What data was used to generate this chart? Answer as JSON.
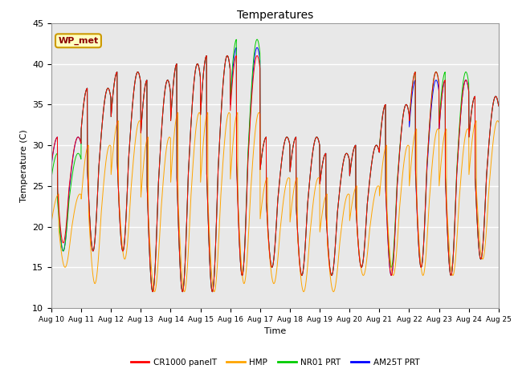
{
  "title": "Temperatures",
  "xlabel": "Time",
  "ylabel": "Temperature (C)",
  "ylim": [
    10,
    45
  ],
  "annotation": "WP_met",
  "legend_labels": [
    "CR1000 panelT",
    "HMP",
    "NR01 PRT",
    "AM25T PRT"
  ],
  "legend_colors": [
    "#ff0000",
    "#ffa500",
    "#00cc00",
    "#0000ff"
  ],
  "x_tick_labels": [
    "Aug 10",
    "Aug 11",
    "Aug 12",
    "Aug 13",
    "Aug 14",
    "Aug 15",
    "Aug 16",
    "Aug 17",
    "Aug 18",
    "Aug 19",
    "Aug 20",
    "Aug 21",
    "Aug 22",
    "Aug 23",
    "Aug 24",
    "Aug 25"
  ],
  "y_ticks": [
    10,
    15,
    20,
    25,
    30,
    35,
    40,
    45
  ],
  "day_maxes_cr": [
    31,
    37,
    39,
    38,
    40,
    41,
    41,
    31,
    31,
    29,
    30,
    35,
    39,
    38,
    36
  ],
  "day_mins_cr": [
    18,
    17,
    17,
    12,
    12,
    12,
    14,
    15,
    14,
    14,
    15,
    14,
    15,
    14,
    16
  ],
  "day_maxes_hmp": [
    24,
    30,
    33,
    31,
    34,
    34,
    34,
    26,
    26,
    24,
    25,
    30,
    32,
    32,
    33
  ],
  "day_mins_hmp": [
    15,
    13,
    16,
    12,
    12,
    12,
    13,
    13,
    12,
    12,
    14,
    14,
    14,
    14,
    16
  ],
  "day_maxes_nr": [
    29,
    37,
    39,
    38,
    40,
    41,
    43,
    31,
    31,
    29,
    30,
    35,
    39,
    39,
    36
  ],
  "day_mins_nr": [
    17,
    17,
    17,
    12,
    12,
    12,
    14,
    15,
    14,
    14,
    15,
    15,
    15,
    14,
    16
  ],
  "day_maxes_am": [
    31,
    37,
    39,
    38,
    40,
    41,
    42,
    31,
    31,
    29,
    30,
    35,
    38,
    38,
    36
  ],
  "day_mins_am": [
    17,
    17,
    17,
    12,
    12,
    12,
    14,
    15,
    14,
    14,
    15,
    14,
    15,
    14,
    16
  ],
  "n_days": 15,
  "pts_per_day": 144
}
